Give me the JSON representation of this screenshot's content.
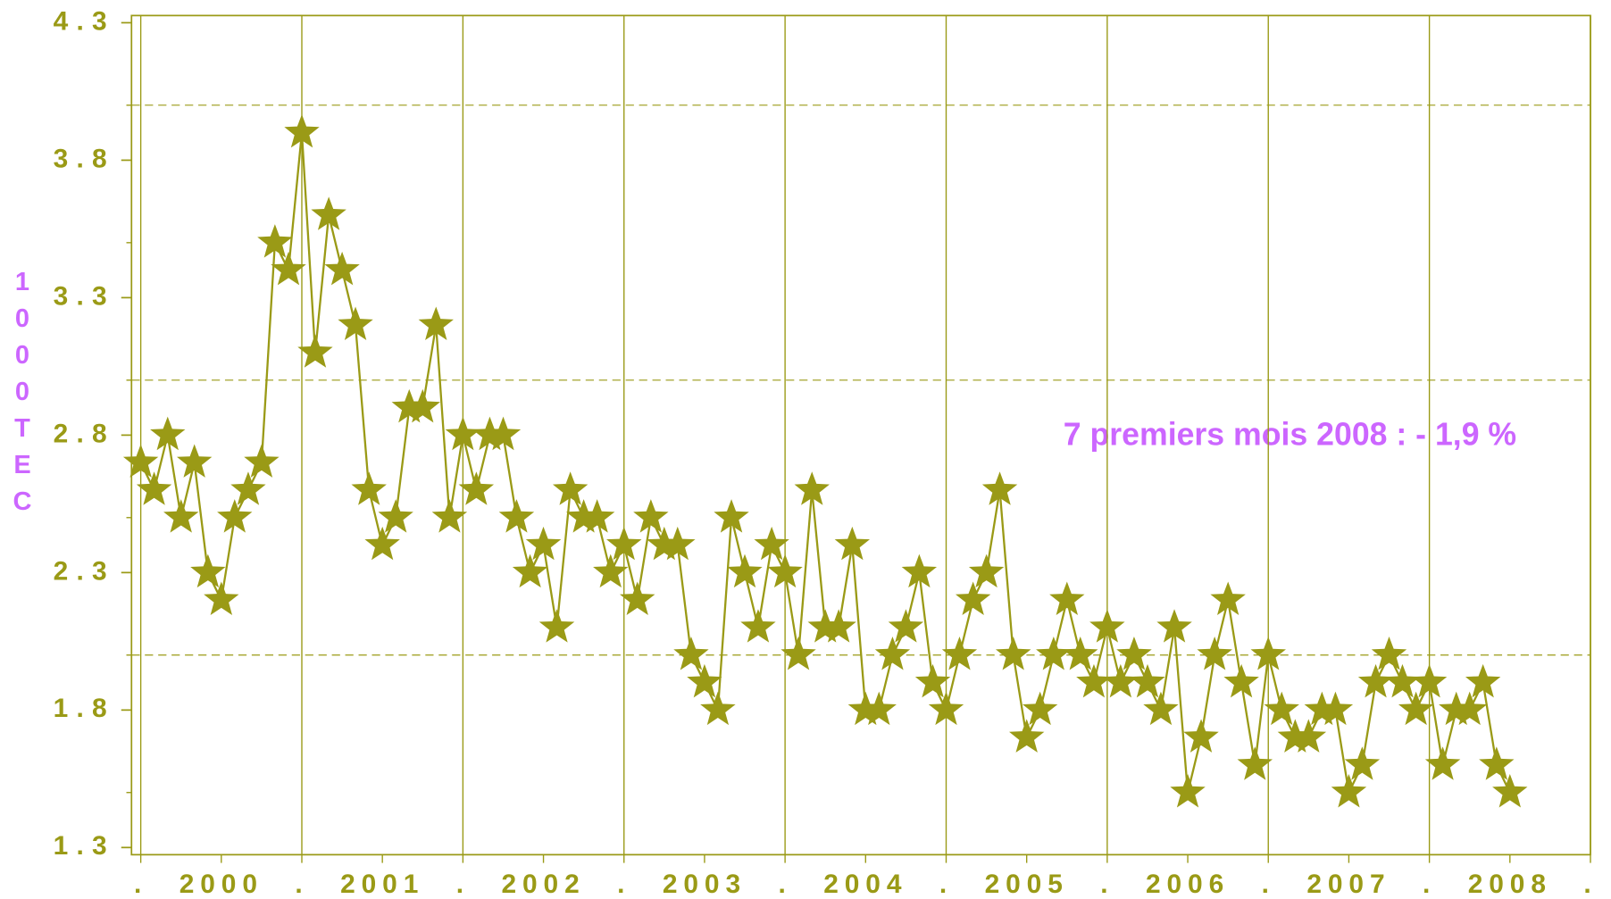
{
  "chart_data": {
    "type": "line",
    "ylabel": "1000 TEC",
    "annotation": "7 premiers mois 2008 : - 1,9 %",
    "color": "#9a9a16",
    "annotation_color": "#cc66ff",
    "marker": "star",
    "xlim": [
      2000,
      2009
    ],
    "xticks": [
      {
        "value": 2000,
        "label": "."
      },
      {
        "value": 2000.5,
        "label": "2000"
      },
      {
        "value": 2001,
        "label": "."
      },
      {
        "value": 2001.5,
        "label": "2001"
      },
      {
        "value": 2002,
        "label": "."
      },
      {
        "value": 2002.5,
        "label": "2002"
      },
      {
        "value": 2003,
        "label": "."
      },
      {
        "value": 2003.5,
        "label": "2003"
      },
      {
        "value": 2004,
        "label": "."
      },
      {
        "value": 2004.5,
        "label": "2004"
      },
      {
        "value": 2005,
        "label": "."
      },
      {
        "value": 2005.5,
        "label": "2005"
      },
      {
        "value": 2006,
        "label": "."
      },
      {
        "value": 2006.5,
        "label": "2006"
      },
      {
        "value": 2007,
        "label": "."
      },
      {
        "value": 2007.5,
        "label": "2007"
      },
      {
        "value": 2008,
        "label": "."
      },
      {
        "value": 2008.5,
        "label": "2008"
      },
      {
        "value": 2009,
        "label": "."
      }
    ],
    "xgrid": [
      2000,
      2001,
      2002,
      2003,
      2004,
      2005,
      2006,
      2007,
      2008,
      2009
    ],
    "ylim": [
      1.3,
      4.3
    ],
    "yticks": [
      1.3,
      1.8,
      2.3,
      2.8,
      3.3,
      3.8,
      4.3
    ],
    "yminor": [
      1.5,
      2,
      2.5,
      3,
      3.5,
      4
    ],
    "ygrid_dashed": [
      2,
      3,
      4
    ],
    "x": [
      2000,
      2000.083,
      2000.167,
      2000.25,
      2000.333,
      2000.417,
      2000.5,
      2000.583,
      2000.667,
      2000.75,
      2000.833,
      2000.917,
      2001,
      2001.083,
      2001.167,
      2001.25,
      2001.333,
      2001.417,
      2001.5,
      2001.583,
      2001.667,
      2001.75,
      2001.833,
      2001.917,
      2002,
      2002.083,
      2002.167,
      2002.25,
      2002.333,
      2002.417,
      2002.5,
      2002.583,
      2002.667,
      2002.75,
      2002.833,
      2002.917,
      2003,
      2003.083,
      2003.167,
      2003.25,
      2003.333,
      2003.417,
      2003.5,
      2003.583,
      2003.667,
      2003.75,
      2003.833,
      2003.917,
      2004,
      2004.083,
      2004.167,
      2004.25,
      2004.333,
      2004.417,
      2004.5,
      2004.583,
      2004.667,
      2004.75,
      2004.833,
      2004.917,
      2005,
      2005.083,
      2005.167,
      2005.25,
      2005.333,
      2005.417,
      2005.5,
      2005.583,
      2005.667,
      2005.75,
      2005.833,
      2005.917,
      2006,
      2006.083,
      2006.167,
      2006.25,
      2006.333,
      2006.417,
      2006.5,
      2006.583,
      2006.667,
      2006.75,
      2006.833,
      2006.917,
      2007,
      2007.083,
      2007.167,
      2007.25,
      2007.333,
      2007.417,
      2007.5,
      2007.583,
      2007.667,
      2007.75,
      2007.833,
      2007.917,
      2008,
      2008.083,
      2008.167,
      2008.25,
      2008.333,
      2008.417,
      2008.5
    ],
    "values": [
      2.7,
      2.6,
      2.8,
      2.5,
      2.7,
      2.3,
      2.2,
      2.5,
      2.6,
      2.7,
      3.5,
      3.4,
      3.9,
      3.1,
      3.6,
      3.4,
      3.2,
      2.6,
      2.4,
      2.5,
      2.9,
      2.9,
      3.2,
      2.5,
      2.8,
      2.6,
      2.8,
      2.8,
      2.5,
      2.3,
      2.4,
      2.1,
      2.6,
      2.5,
      2.5,
      2.3,
      2.4,
      2.2,
      2.5,
      2.4,
      2.4,
      2.0,
      1.9,
      1.8,
      2.5,
      2.3,
      2.1,
      2.4,
      2.3,
      2.0,
      2.6,
      2.1,
      2.1,
      2.4,
      1.8,
      1.8,
      2.0,
      2.1,
      2.3,
      1.9,
      1.8,
      2.0,
      2.2,
      2.3,
      2.6,
      2.0,
      1.7,
      1.8,
      2.0,
      2.2,
      2.0,
      1.9,
      2.1,
      1.9,
      2.0,
      1.9,
      1.8,
      2.1,
      1.5,
      1.7,
      2.0,
      2.2,
      1.9,
      1.6,
      2.0,
      1.8,
      1.7,
      1.7,
      1.8,
      1.8,
      1.5,
      1.6,
      1.9,
      2.0,
      1.9,
      1.8,
      1.9,
      1.6,
      1.8,
      1.8,
      1.9,
      1.6,
      1.5
    ]
  }
}
